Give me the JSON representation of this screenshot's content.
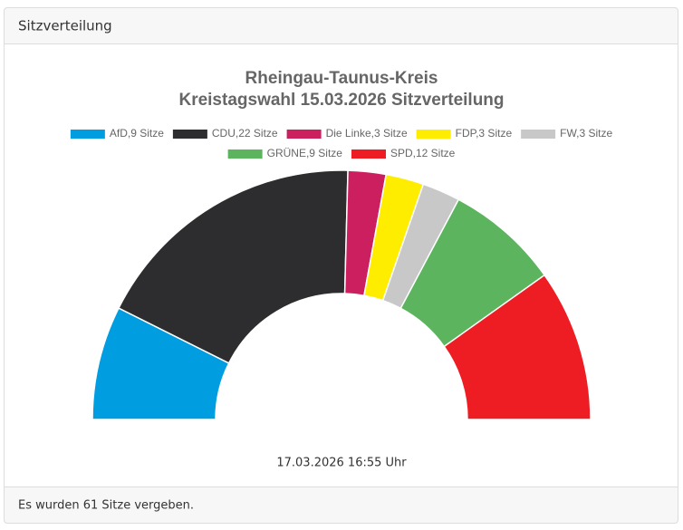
{
  "header": "Sitzverteilung",
  "chart_data": {
    "type": "half-donut",
    "title": "Rheingau-Taunus-Kreis",
    "subtitle": "Kreistagswahl 15.03.2026 Sitzverteilung",
    "categories": [
      "AfD,9 Sitze",
      "CDU,22 Sitze",
      "Die Linke,3 Sitze",
      "FDP,3 Sitze",
      "FW,3 Sitze",
      "GRÜNE,9 Sitze",
      "SPD,12 Sitze"
    ],
    "values": [
      9,
      22,
      3,
      3,
      3,
      9,
      12
    ],
    "colors": [
      "#009ee0",
      "#2d2c2e",
      "#cc1f5f",
      "#ffed00",
      "#c8c8c8",
      "#5cb55e",
      "#ee1d23"
    ],
    "timestamp": "17.03.2026 16:55 Uhr"
  },
  "footer": "Es wurden 61 Sitze vergeben."
}
